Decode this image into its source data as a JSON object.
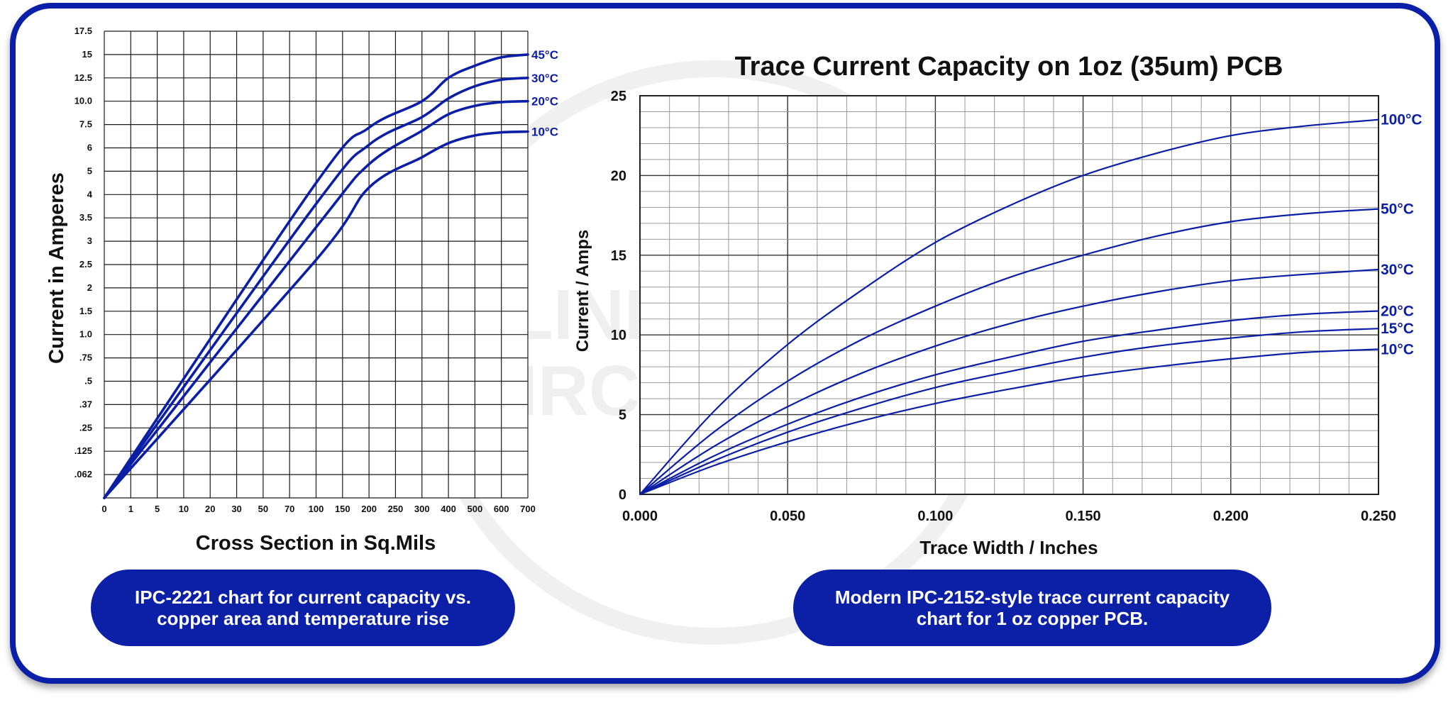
{
  "watermark": {
    "line1": "BLIND BURIED",
    "line2": "CIRCUITS LLC"
  },
  "captions": {
    "left": "IPC-2221 chart for current capacity vs.\ncopper area and temperature rise",
    "right": "Modern IPC-2152-style trace current capacity\nchart for 1 oz copper PCB."
  },
  "chart_data": [
    {
      "type": "line",
      "title": "",
      "xlabel": "Cross Section in Sq.Mils",
      "ylabel": "Current in Amperes",
      "x_scale": "categorical",
      "x_ticks": [
        "0",
        "1",
        "5",
        "10",
        "20",
        "30",
        "50",
        "70",
        "100",
        "150",
        "200",
        "250",
        "300",
        "400",
        "500",
        "600",
        "700"
      ],
      "y_scale": "categorical",
      "y_ticks": [
        ".062",
        ".125",
        ".25",
        ".37",
        ".5",
        ".75",
        "1.0",
        "1.5",
        "2",
        "2.5",
        "3",
        "3.5",
        "4",
        "5",
        "6",
        "7.5",
        "10.0",
        "12.5",
        "15",
        "17.5"
      ],
      "grid": true,
      "line_color": "#0b1ea6",
      "series": [
        {
          "name": "45°C",
          "x": [
            "0",
            "100",
            "200",
            "300",
            "400",
            "500",
            "600",
            "700"
          ],
          "y": [
            0,
            4.5,
            7.3,
            10.0,
            12.5,
            13.8,
            14.7,
            15
          ]
        },
        {
          "name": "30°C",
          "x": [
            "0",
            "100",
            "200",
            "300",
            "400",
            "500",
            "600",
            "700"
          ],
          "y": [
            0,
            3.8,
            6.2,
            8.3,
            10.3,
            11.6,
            12.3,
            12.5
          ]
        },
        {
          "name": "20°C",
          "x": [
            "0",
            "100",
            "200",
            "300",
            "400",
            "500",
            "600",
            "700"
          ],
          "y": [
            0,
            3.3,
            5.3,
            7.1,
            8.6,
            9.5,
            9.9,
            10.0
          ]
        },
        {
          "name": "10°C",
          "x": [
            "0",
            "100",
            "200",
            "300",
            "400",
            "500",
            "600",
            "700"
          ],
          "y": [
            0,
            2.6,
            4.3,
            5.6,
            6.3,
            6.8,
            7.0,
            7.05
          ]
        }
      ]
    },
    {
      "type": "line",
      "title": "Trace Current Capacity on 1oz (35um) PCB",
      "xlabel": "Trace Width / Inches",
      "ylabel": "Current / Amps",
      "xlim": [
        0,
        0.25
      ],
      "ylim": [
        0,
        25
      ],
      "x_ticks": [
        "0.000",
        "0.050",
        "0.100",
        "0.150",
        "0.200",
        "0.250"
      ],
      "y_ticks": [
        "0",
        "5",
        "10",
        "15",
        "20",
        "25"
      ],
      "grid": true,
      "line_color": "#0b1ea6",
      "series": [
        {
          "name": "100°C",
          "x": [
            0,
            0.025,
            0.05,
            0.075,
            0.1,
            0.125,
            0.15,
            0.175,
            0.2,
            0.225,
            0.25
          ],
          "y": [
            0,
            5.2,
            9.4,
            12.8,
            15.8,
            18.1,
            20.0,
            21.4,
            22.5,
            23.1,
            23.5
          ]
        },
        {
          "name": "50°C",
          "x": [
            0,
            0.025,
            0.05,
            0.075,
            0.1,
            0.125,
            0.15,
            0.175,
            0.2,
            0.225,
            0.25
          ],
          "y": [
            0,
            3.9,
            7.1,
            9.7,
            11.8,
            13.6,
            15.0,
            16.2,
            17.1,
            17.6,
            17.9
          ]
        },
        {
          "name": "30°C",
          "x": [
            0,
            0.025,
            0.05,
            0.075,
            0.1,
            0.125,
            0.15,
            0.175,
            0.2,
            0.225,
            0.25
          ],
          "y": [
            0,
            3.0,
            5.5,
            7.6,
            9.3,
            10.7,
            11.8,
            12.7,
            13.4,
            13.8,
            14.1
          ]
        },
        {
          "name": "20°C",
          "x": [
            0,
            0.025,
            0.05,
            0.075,
            0.1,
            0.125,
            0.15,
            0.175,
            0.2,
            0.225,
            0.25
          ],
          "y": [
            0,
            2.4,
            4.4,
            6.1,
            7.5,
            8.6,
            9.6,
            10.3,
            10.9,
            11.3,
            11.5
          ]
        },
        {
          "name": "15°C",
          "x": [
            0,
            0.025,
            0.05,
            0.075,
            0.1,
            0.125,
            0.15,
            0.175,
            0.2,
            0.225,
            0.25
          ],
          "y": [
            0,
            2.1,
            3.9,
            5.4,
            6.7,
            7.7,
            8.6,
            9.3,
            9.8,
            10.2,
            10.4
          ]
        },
        {
          "name": "10°C",
          "x": [
            0,
            0.025,
            0.05,
            0.075,
            0.1,
            0.125,
            0.15,
            0.175,
            0.2,
            0.225,
            0.25
          ],
          "y": [
            0,
            1.8,
            3.3,
            4.6,
            5.7,
            6.6,
            7.4,
            8.0,
            8.5,
            8.9,
            9.1
          ]
        }
      ]
    }
  ]
}
